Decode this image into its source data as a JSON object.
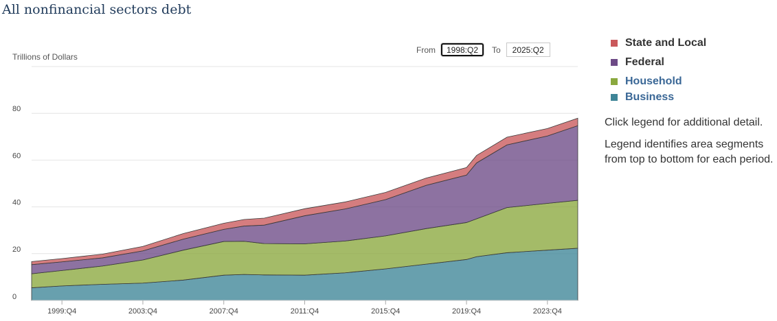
{
  "title": "All nonfinancial sectors debt",
  "controls": {
    "from_label": "From",
    "from_value": "1998:Q2",
    "to_label": "To",
    "to_value": "2025:Q2"
  },
  "legend": [
    {
      "name": "State and Local",
      "color": "#c9585b",
      "text_color": "#333333"
    },
    {
      "name": "Federal",
      "color": "#6d4a86",
      "text_color": "#333333"
    },
    {
      "name": "Household",
      "color": "#8aa83e",
      "text_color": "#3a6796"
    },
    {
      "name": "Business",
      "color": "#3e8597",
      "text_color": "#3a6796"
    }
  ],
  "notes": [
    "Click legend for additional detail.",
    "Legend identifies area segments from top to bottom for each period."
  ],
  "chart_data": {
    "type": "area",
    "stacked": true,
    "ylabel": "Trillions of Dollars",
    "ylim": [
      0,
      100
    ],
    "yticks": [
      0,
      20,
      40,
      60,
      80
    ],
    "xticks": [
      "1999:Q4",
      "2003:Q4",
      "2007:Q4",
      "2011:Q4",
      "2015:Q4",
      "2019:Q4",
      "2023:Q4"
    ],
    "grid": true,
    "x": [
      "1998:Q2",
      "1999:Q4",
      "2001:Q4",
      "2003:Q4",
      "2005:Q4",
      "2007:Q4",
      "2008:Q4",
      "2009:Q4",
      "2011:Q4",
      "2013:Q4",
      "2015:Q4",
      "2017:Q4",
      "2019:Q4",
      "2020:Q2",
      "2021:Q4",
      "2023:Q4",
      "2025:Q2"
    ],
    "series": [
      {
        "name": "Business",
        "values": [
          5.4,
          6.2,
          6.9,
          7.4,
          8.7,
          10.8,
          11.1,
          10.9,
          10.8,
          11.8,
          13.5,
          15.5,
          17.5,
          18.7,
          20.4,
          21.5,
          22.3
        ]
      },
      {
        "name": "Household",
        "values": [
          6.0,
          6.6,
          7.8,
          9.9,
          12.8,
          14.4,
          14.2,
          13.4,
          13.4,
          13.6,
          14.1,
          15.2,
          15.8,
          16.2,
          19.3,
          20.0,
          20.5
        ]
      },
      {
        "name": "Federal",
        "values": [
          3.9,
          3.7,
          3.5,
          3.9,
          4.7,
          5.2,
          6.5,
          7.9,
          12.0,
          13.7,
          15.5,
          18.5,
          20.3,
          23.9,
          26.8,
          28.8,
          31.9
        ]
      },
      {
        "name": "State and Local",
        "values": [
          1.3,
          1.4,
          1.6,
          1.9,
          2.4,
          2.6,
          2.8,
          3.0,
          3.0,
          3.0,
          3.1,
          3.1,
          3.2,
          3.2,
          3.3,
          3.2,
          3.2
        ]
      }
    ]
  }
}
